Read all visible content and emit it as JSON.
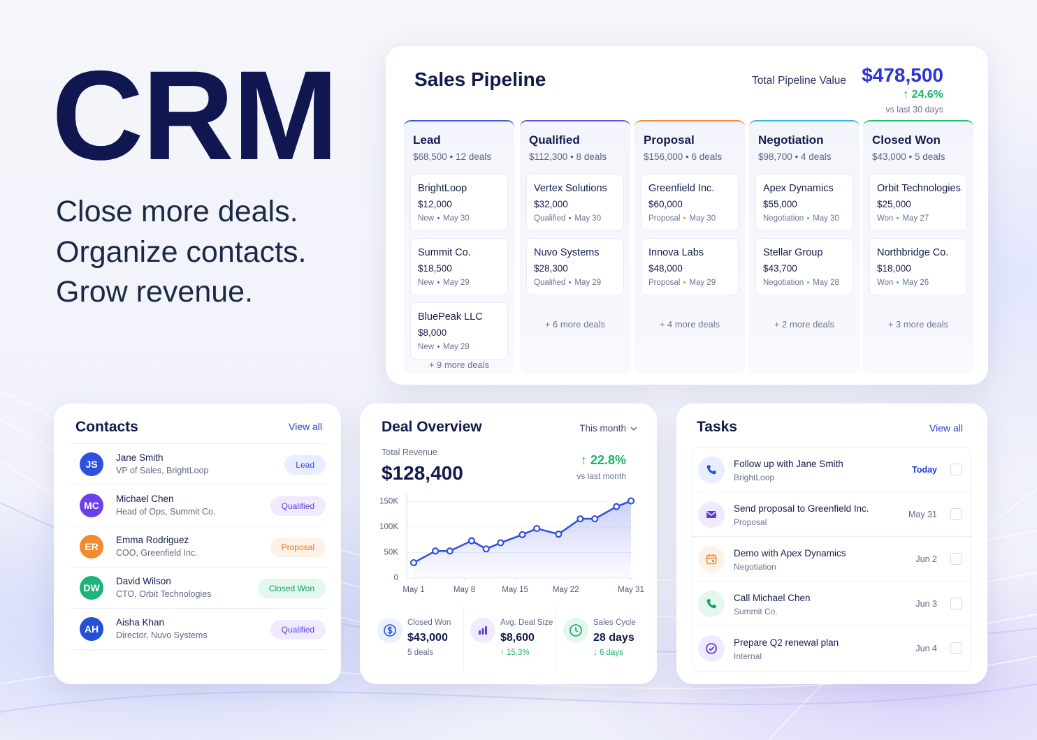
{
  "hero": {
    "title": "CRM",
    "lines": [
      "Close more deals.",
      "Organize contacts.",
      "Grow revenue."
    ]
  },
  "pipeline": {
    "title": "Sales Pipeline",
    "total_label": "Total Pipeline Value",
    "total": "$478,500",
    "change": "↑ 24.6%",
    "change_note": "vs last 30 days",
    "stages": [
      {
        "name": "Lead",
        "summary": "$68,500 • 12 deals",
        "more": "+ 9 more deals",
        "deals": [
          {
            "name": "BrightLoop",
            "amount": "$12,000",
            "stage": "New",
            "date": "May 30"
          },
          {
            "name": "Summit Co.",
            "amount": "$18,500",
            "stage": "New",
            "date": "May 29"
          },
          {
            "name": "BluePeak LLC",
            "amount": "$8,000",
            "stage": "New",
            "date": "May 28"
          }
        ]
      },
      {
        "name": "Qualified",
        "summary": "$112,300 • 8 deals",
        "more": "+ 6 more deals",
        "deals": [
          {
            "name": "Vertex Solutions",
            "amount": "$32,000",
            "stage": "Qualified",
            "date": "May 30"
          },
          {
            "name": "Nuvo Systems",
            "amount": "$28,300",
            "stage": "Qualified",
            "date": "May 29"
          }
        ]
      },
      {
        "name": "Proposal",
        "summary": "$156,000 • 6 deals",
        "more": "+ 4 more deals",
        "deals": [
          {
            "name": "Greenfield Inc.",
            "amount": "$60,000",
            "stage": "Proposal",
            "date": "May 30"
          },
          {
            "name": "Innova Labs",
            "amount": "$48,000",
            "stage": "Proposal",
            "date": "May 29"
          }
        ]
      },
      {
        "name": "Negotiation",
        "summary": "$98,700 • 4 deals",
        "more": "+ 2 more deals",
        "deals": [
          {
            "name": "Apex Dynamics",
            "amount": "$55,000",
            "stage": "Negotiation",
            "date": "May 30"
          },
          {
            "name": "Stellar Group",
            "amount": "$43,700",
            "stage": "Negotiation",
            "date": "May 28"
          }
        ]
      },
      {
        "name": "Closed Won",
        "summary": "$43,000 • 5 deals",
        "more": "+ 3 more deals",
        "deals": [
          {
            "name": "Orbit Technologies",
            "amount": "$25,000",
            "stage": "Won",
            "date": "May 27"
          },
          {
            "name": "Northbridge Co.",
            "amount": "$18,000",
            "stage": "Won",
            "date": "May 26"
          }
        ]
      }
    ]
  },
  "contacts": {
    "title": "Contacts",
    "action": "View all",
    "rows": [
      {
        "initials": "JS",
        "name": "Jane Smith",
        "role": "VP of Sales, BrightLoop",
        "status": "Lead"
      },
      {
        "initials": "MC",
        "name": "Michael Chen",
        "role": "Head of Ops, Summit Co.",
        "status": "Qualified"
      },
      {
        "initials": "ER",
        "name": "Emma Rodriguez",
        "role": "COO, Greenfield Inc.",
        "status": "Proposal"
      },
      {
        "initials": "DW",
        "name": "David Wilson",
        "role": "CTO, Orbit Technologies",
        "status": "Closed Won"
      },
      {
        "initials": "AH",
        "name": "Aisha Khan",
        "role": "Director, Nuvo Systems",
        "status": "Qualified"
      }
    ]
  },
  "deal_overview": {
    "title": "Deal Overview",
    "period": "This month",
    "revenue_label": "Total Revenue",
    "revenue": "$128,400",
    "change": "↑ 22.8%",
    "change_note": "vs last month",
    "chart": {
      "type": "line",
      "x": [
        1,
        4,
        6,
        9,
        11,
        13,
        16,
        18,
        21,
        24,
        26,
        29,
        31
      ],
      "values": [
        30,
        53,
        53,
        73,
        57,
        69,
        85,
        97,
        86,
        116,
        116,
        140,
        151
      ],
      "xlim": [
        1,
        31
      ],
      "xticks": [
        {
          "value": 1,
          "label": "May 1"
        },
        {
          "value": 8,
          "label": "May 8"
        },
        {
          "value": 15,
          "label": "May 15"
        },
        {
          "value": 22,
          "label": "May 22"
        },
        {
          "value": 31,
          "label": "May 31"
        }
      ],
      "ylim": [
        0,
        160
      ],
      "yticks": [
        0,
        {
          "value": 50,
          "label": "50K"
        },
        {
          "value": 100,
          "label": "100K"
        },
        {
          "value": 150,
          "label": "150K"
        }
      ],
      "color": "#2f4fe0",
      "grid": true
    },
    "stats": [
      {
        "label": "Closed Won",
        "value": "$43,000",
        "note": "5 deals"
      },
      {
        "label": "Avg. Deal Size",
        "value": "$8,600",
        "note": "↑ 15.3%"
      },
      {
        "label": "Sales Cycle",
        "value": "28 days",
        "note": "↓ 6 days"
      }
    ]
  },
  "tasks": {
    "title": "Tasks",
    "action": "View all",
    "items": [
      {
        "title": "Follow up with Jane Smith",
        "sub": "BrightLoop",
        "due": "Today"
      },
      {
        "title": "Send proposal to Greenfield Inc.",
        "sub": "Proposal",
        "due": "May 31"
      },
      {
        "title": "Demo with Apex Dynamics",
        "sub": "Negotiation",
        "due": "Jun 2"
      },
      {
        "title": "Call Michael Chen",
        "sub": "Summit Co.",
        "due": "Jun 3"
      },
      {
        "title": "Prepare Q2 renewal plan",
        "sub": "Internal",
        "due": "Jun 4"
      }
    ]
  }
}
